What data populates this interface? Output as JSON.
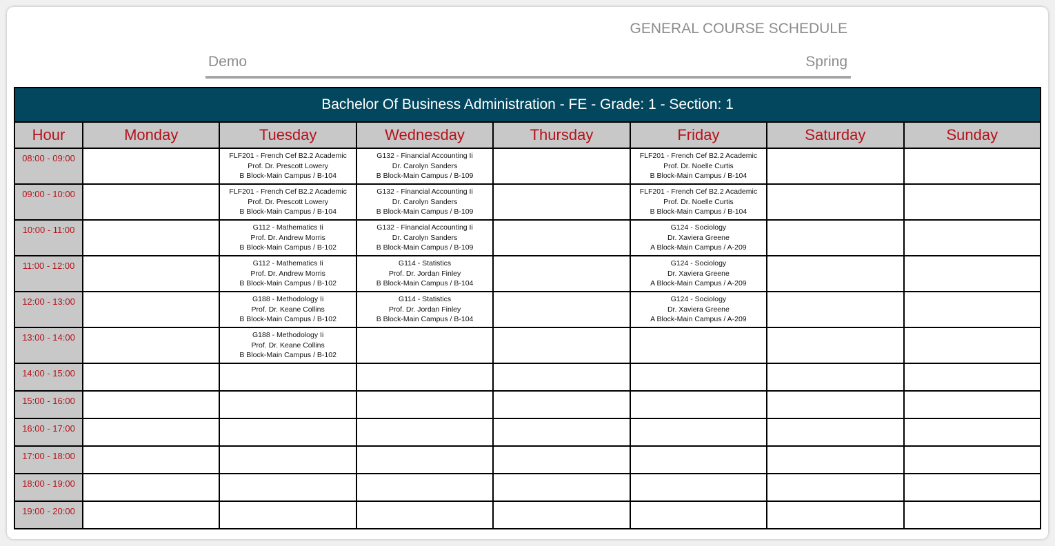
{
  "header": {
    "title": "GENERAL COURSE SCHEDULE",
    "left_label": "Demo",
    "right_label": "Spring"
  },
  "table": {
    "banner": "Bachelor Of Business Administration - FE - Grade: 1 - Section: 1",
    "columns": [
      "Hour",
      "Monday",
      "Tuesday",
      "Wednesday",
      "Thursday",
      "Friday",
      "Saturday",
      "Sunday"
    ],
    "rows": [
      {
        "hour": "08:00 - 09:00",
        "cells": [
          null,
          {
            "course": "FLF201 - French Cef B2.2 Academic",
            "teacher": "Prof. Dr. Prescott Lowery",
            "room": "B Block-Main Campus / B-104"
          },
          {
            "course": "G132 - Financial Accounting Ii",
            "teacher": "Dr. Carolyn Sanders",
            "room": "B Block-Main Campus / B-109"
          },
          null,
          {
            "course": "FLF201 - French Cef B2.2 Academic",
            "teacher": "Prof. Dr. Noelle Curtis",
            "room": "B Block-Main Campus / B-104"
          },
          null,
          null
        ]
      },
      {
        "hour": "09:00 - 10:00",
        "cells": [
          null,
          {
            "course": "FLF201 - French Cef B2.2 Academic",
            "teacher": "Prof. Dr. Prescott Lowery",
            "room": "B Block-Main Campus / B-104"
          },
          {
            "course": "G132 - Financial Accounting Ii",
            "teacher": "Dr. Carolyn Sanders",
            "room": "B Block-Main Campus / B-109"
          },
          null,
          {
            "course": "FLF201 - French Cef B2.2 Academic",
            "teacher": "Prof. Dr. Noelle Curtis",
            "room": "B Block-Main Campus / B-104"
          },
          null,
          null
        ]
      },
      {
        "hour": "10:00 - 11:00",
        "cells": [
          null,
          {
            "course": "G112 - Mathematics Ii",
            "teacher": "Prof. Dr. Andrew Morris",
            "room": "B Block-Main Campus / B-102"
          },
          {
            "course": "G132 - Financial Accounting Ii",
            "teacher": "Dr. Carolyn Sanders",
            "room": "B Block-Main Campus / B-109"
          },
          null,
          {
            "course": "G124 - Sociology",
            "teacher": "Dr. Xaviera Greene",
            "room": "A Block-Main Campus / A-209"
          },
          null,
          null
        ]
      },
      {
        "hour": "11:00 - 12:00",
        "cells": [
          null,
          {
            "course": "G112 - Mathematics Ii",
            "teacher": "Prof. Dr. Andrew Morris",
            "room": "B Block-Main Campus / B-102"
          },
          {
            "course": "G114 - Statistics",
            "teacher": "Prof. Dr. Jordan Finley",
            "room": "B Block-Main Campus / B-104"
          },
          null,
          {
            "course": "G124 - Sociology",
            "teacher": "Dr. Xaviera Greene",
            "room": "A Block-Main Campus / A-209"
          },
          null,
          null
        ]
      },
      {
        "hour": "12:00 - 13:00",
        "cells": [
          null,
          {
            "course": "G188 - Methodology Ii",
            "teacher": "Prof. Dr. Keane Collins",
            "room": "B Block-Main Campus / B-102"
          },
          {
            "course": "G114 - Statistics",
            "teacher": "Prof. Dr. Jordan Finley",
            "room": "B Block-Main Campus / B-104"
          },
          null,
          {
            "course": "G124 - Sociology",
            "teacher": "Dr. Xaviera Greene",
            "room": "A Block-Main Campus / A-209"
          },
          null,
          null
        ]
      },
      {
        "hour": "13:00 - 14:00",
        "cells": [
          null,
          {
            "course": "G188 - Methodology Ii",
            "teacher": "Prof. Dr. Keane Collins",
            "room": "B Block-Main Campus / B-102"
          },
          null,
          null,
          null,
          null,
          null
        ]
      },
      {
        "hour": "14:00 - 15:00",
        "cells": [
          null,
          null,
          null,
          null,
          null,
          null,
          null
        ]
      },
      {
        "hour": "15:00 - 16:00",
        "cells": [
          null,
          null,
          null,
          null,
          null,
          null,
          null
        ]
      },
      {
        "hour": "16:00 - 17:00",
        "cells": [
          null,
          null,
          null,
          null,
          null,
          null,
          null
        ]
      },
      {
        "hour": "17:00 - 18:00",
        "cells": [
          null,
          null,
          null,
          null,
          null,
          null,
          null
        ]
      },
      {
        "hour": "18:00 - 19:00",
        "cells": [
          null,
          null,
          null,
          null,
          null,
          null,
          null
        ]
      },
      {
        "hour": "19:00 - 20:00",
        "cells": [
          null,
          null,
          null,
          null,
          null,
          null,
          null
        ]
      }
    ]
  },
  "colors": {
    "banner": "#02475e",
    "header_text": "#b5121b",
    "header_bg": "#c8c8c8",
    "title": "#8c8c8c"
  }
}
